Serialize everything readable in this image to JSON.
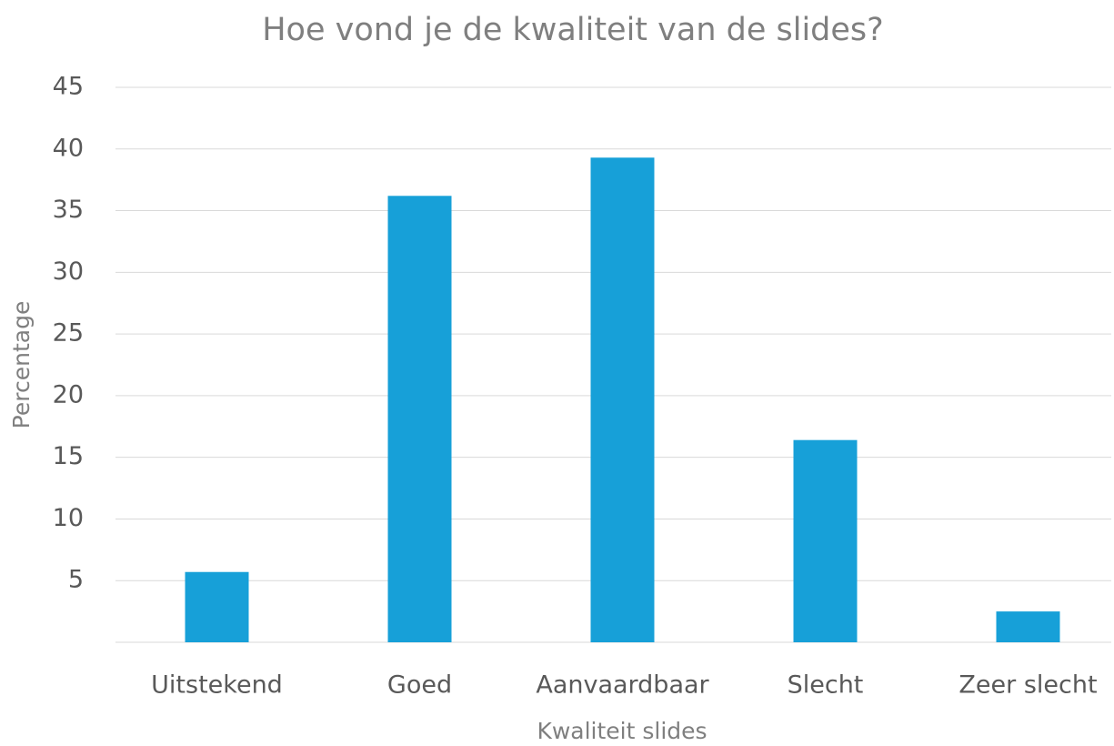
{
  "chart_data": {
    "type": "bar",
    "title": "Hoe vond je de kwaliteit van de slides?",
    "x_label": "Kwaliteit slides",
    "y_label": "Percentage",
    "categories": [
      "Uitstekend",
      "Goed",
      "Aanvaardbaar",
      "Slecht",
      "Zeer slecht"
    ],
    "values": [
      5.7,
      36.2,
      39.3,
      16.4,
      2.5
    ],
    "color": "#17a0d8",
    "ylim": [
      0,
      45
    ],
    "yticks": [
      5,
      10,
      15,
      20,
      25,
      30,
      35,
      40,
      45
    ],
    "grid": true
  }
}
